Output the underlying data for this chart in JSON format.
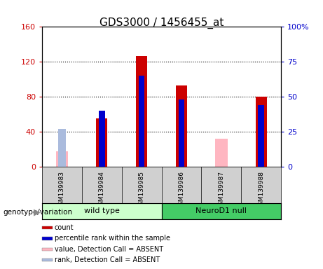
{
  "title": "GDS3000 / 1456455_at",
  "samples": [
    "GSM139983",
    "GSM139984",
    "GSM139985",
    "GSM139986",
    "GSM139987",
    "GSM139988"
  ],
  "count_values": [
    null,
    55,
    127,
    93,
    null,
    80
  ],
  "rank_values": [
    null,
    40,
    65,
    48,
    null,
    44
  ],
  "absent_value": [
    18,
    null,
    null,
    null,
    32,
    null
  ],
  "absent_rank": [
    27,
    null,
    null,
    null,
    null,
    null
  ],
  "ylim_left": [
    0,
    160
  ],
  "ylim_right": [
    0,
    100
  ],
  "yticks_left": [
    0,
    40,
    80,
    120,
    160
  ],
  "ytick_labels_left": [
    "0",
    "40",
    "80",
    "120",
    "160"
  ],
  "yticks_right": [
    0,
    25,
    50,
    75,
    100
  ],
  "ytick_labels_right": [
    "0",
    "25",
    "50",
    "75",
    "100%"
  ],
  "left_color": "#CC0000",
  "right_color": "#0000CC",
  "absent_val_color": "#FFB6C1",
  "absent_rank_color": "#AABBDD",
  "bar_width": 0.28,
  "title_fontsize": 11,
  "tick_fontsize": 8,
  "legend_items": [
    [
      "#CC0000",
      "count"
    ],
    [
      "#0000CC",
      "percentile rank within the sample"
    ],
    [
      "#FFB6C1",
      "value, Detection Call = ABSENT"
    ],
    [
      "#AABBDD",
      "rank, Detection Call = ABSENT"
    ]
  ],
  "wt_color": "#CCFFCC",
  "nd_color": "#44CC66",
  "gray_bg": "#D0D0D0"
}
